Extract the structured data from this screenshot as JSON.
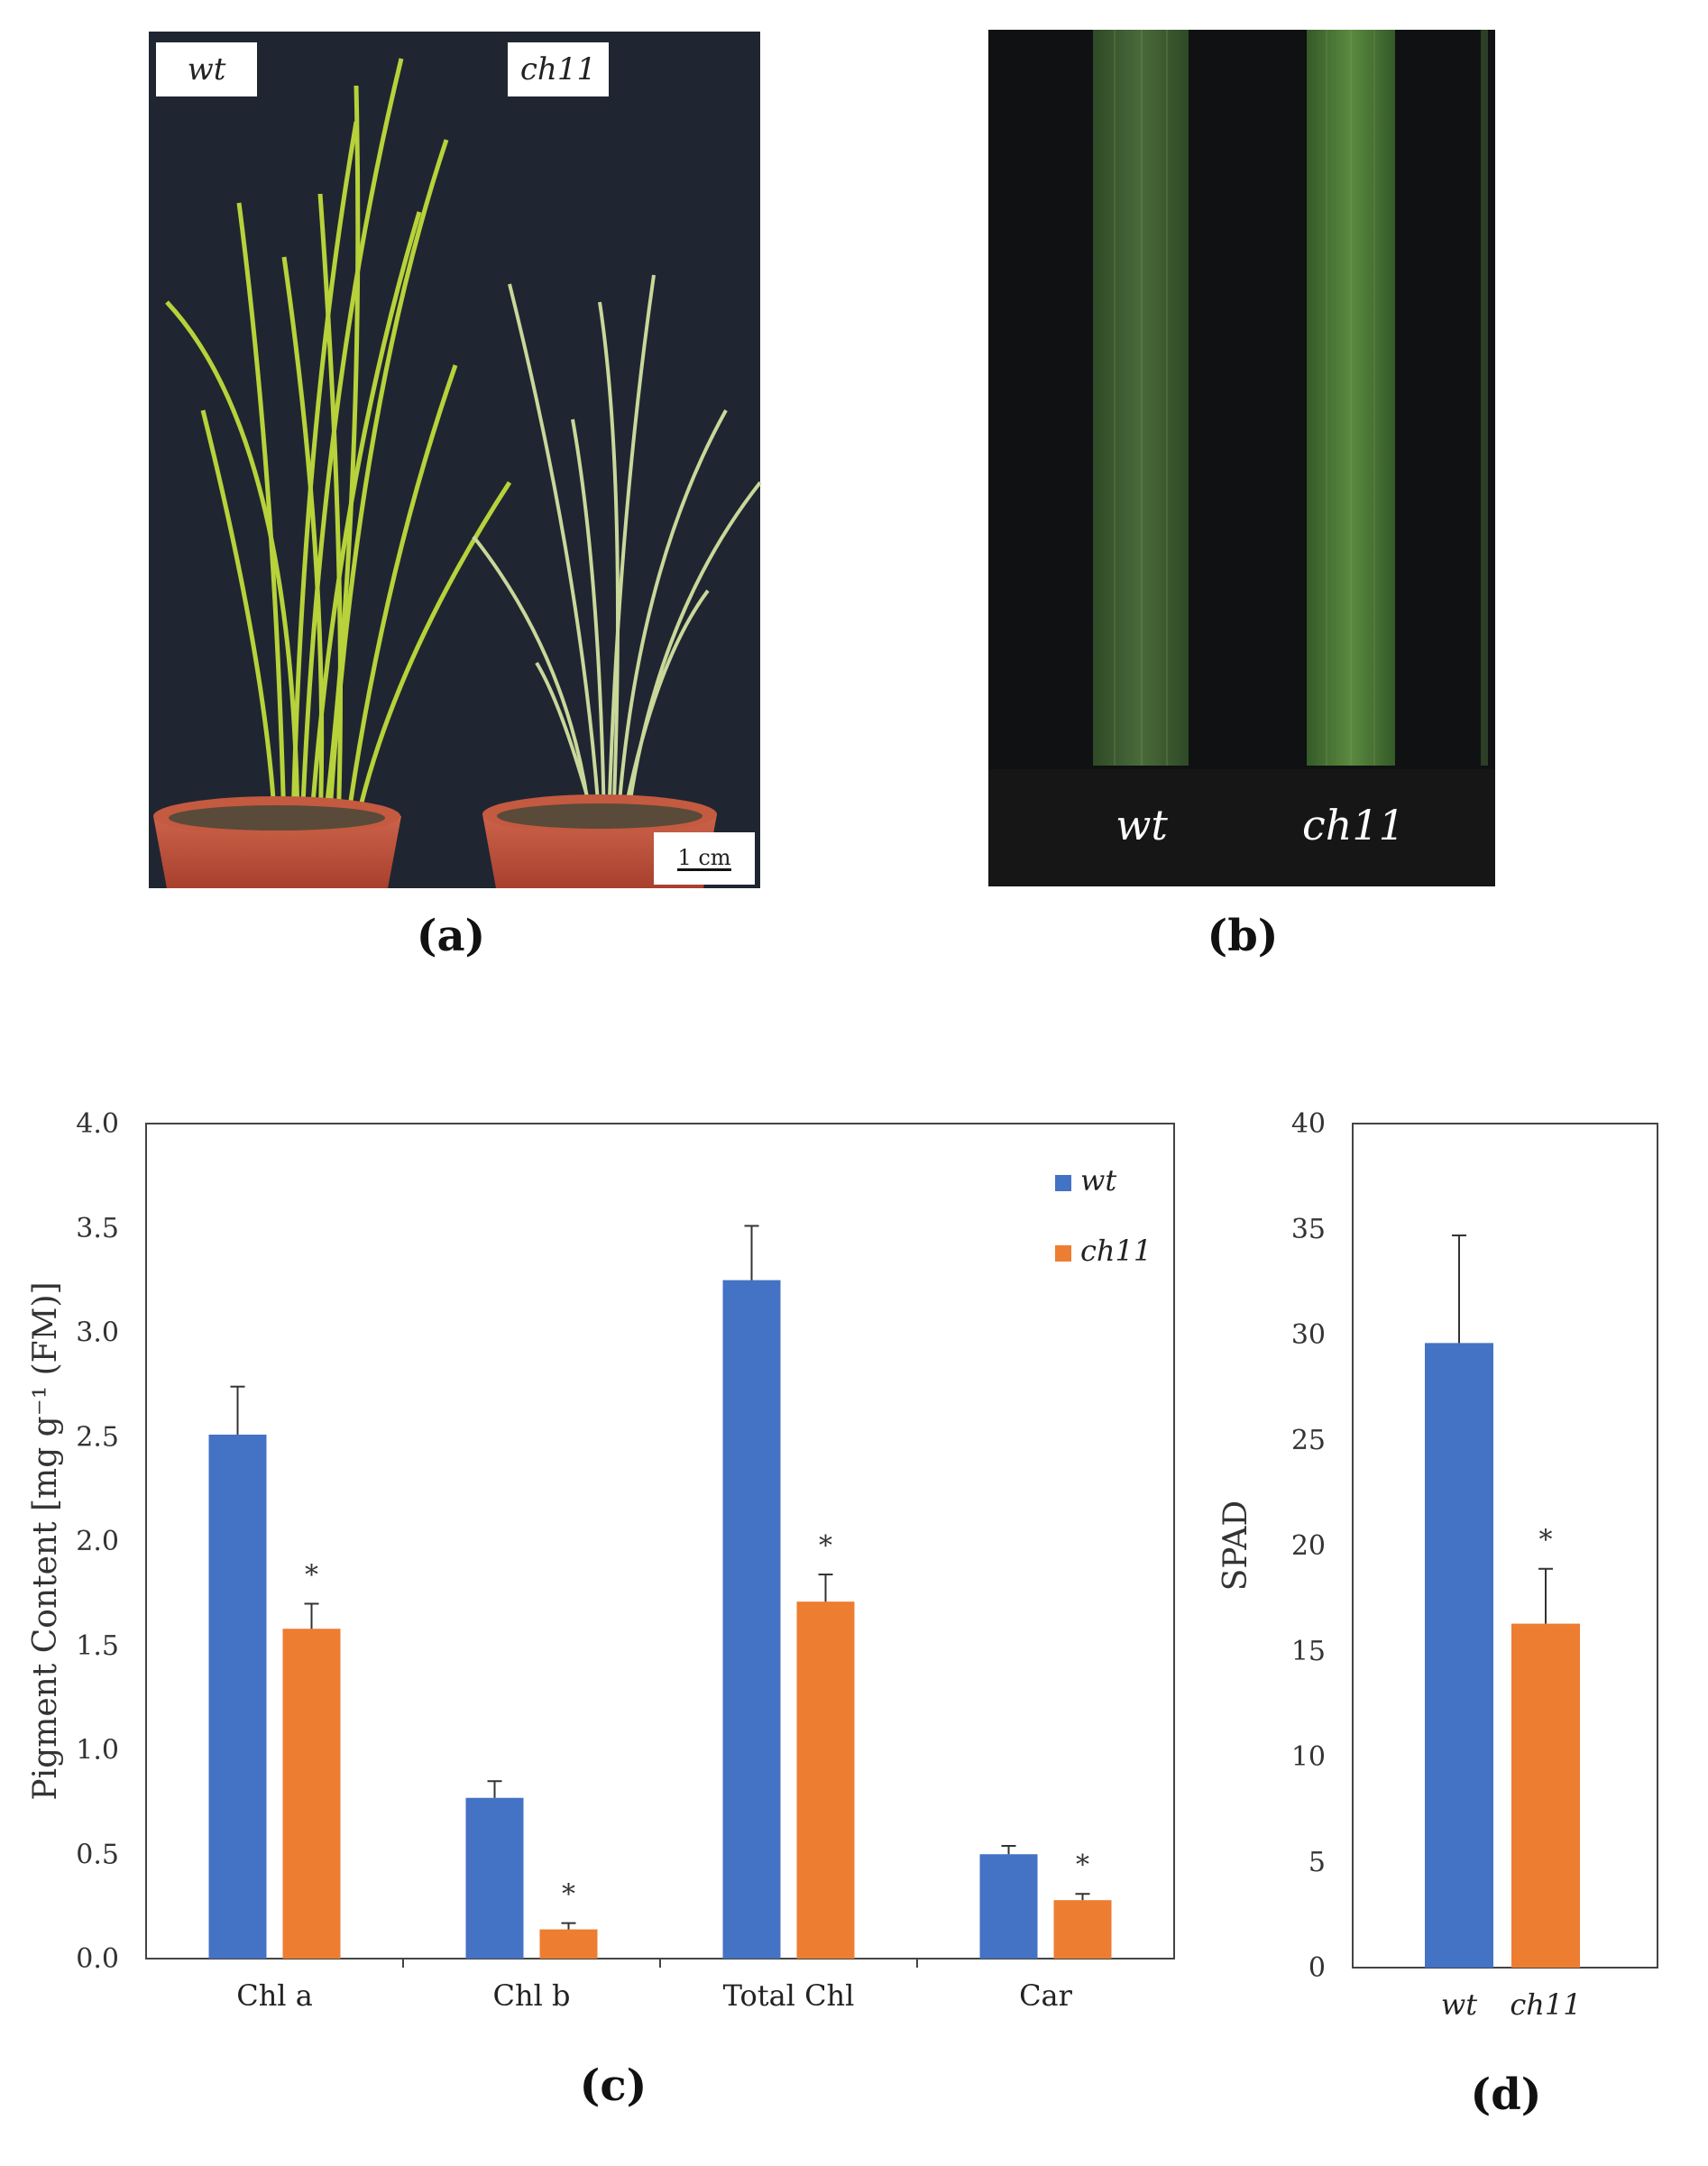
{
  "panel_a": {
    "label": "(a)",
    "left_tag": "wt",
    "right_tag": "ch11",
    "scale_bar": "1 cm"
  },
  "panel_b": {
    "label": "(b)",
    "left_tag": "wt",
    "right_tag": "ch11"
  },
  "panel_c": {
    "label": "(c)"
  },
  "panel_d": {
    "label": "(d)"
  },
  "colors": {
    "wt": "#4472C4",
    "ch11": "#ED7D31",
    "background_photo": "#1e2530"
  },
  "chart_data": [
    {
      "type": "bar",
      "ylabel": "Pigment Content [mg g⁻¹ (FM)]",
      "ylim": [
        0,
        4
      ],
      "yticks": [
        "0.0",
        "0.5",
        "1.0",
        "1.5",
        "2.0",
        "2.5",
        "3.0",
        "3.5",
        "4.0"
      ],
      "categories": [
        "Chl a",
        "Chl b",
        "Total Chl",
        "Car"
      ],
      "legend_position": "top-right",
      "series": [
        {
          "name": "wt",
          "values": [
            2.51,
            0.77,
            3.25,
            0.5
          ],
          "errors": [
            0.23,
            0.08,
            0.26,
            0.04
          ]
        },
        {
          "name": "ch11",
          "values": [
            1.58,
            0.14,
            1.71,
            0.28
          ],
          "errors": [
            0.12,
            0.03,
            0.13,
            0.03
          ]
        }
      ],
      "significance": [
        "*",
        "*",
        "*",
        "*"
      ]
    },
    {
      "type": "bar",
      "ylabel": "SPAD",
      "ylim": [
        0,
        40
      ],
      "yticks": [
        "0",
        "5",
        "10",
        "15",
        "20",
        "25",
        "30",
        "35",
        "40"
      ],
      "categories": [
        "wt",
        "ch11"
      ],
      "values": [
        29.6,
        16.3
      ],
      "errors": [
        5.1,
        2.6
      ],
      "significance": [
        "",
        "*"
      ]
    }
  ]
}
